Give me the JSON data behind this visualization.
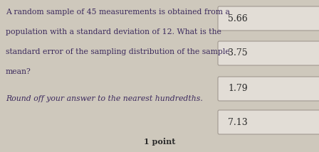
{
  "question_lines": [
    "A random sample of 45 measurements is obtained from a",
    "population with a standard deviation of 12. What is the",
    "standard error of the sampling distribution of the sample",
    "mean?"
  ],
  "sub_note": "Round off your answer to the nearest hundredths.",
  "choices": [
    "5.66",
    "3.75",
    "1.79",
    "7.13"
  ],
  "footer": "1 point",
  "bg_color": "#cec8bc",
  "box_color": "#e2ddd6",
  "box_border_color": "#a09890",
  "question_color": "#3d2b5e",
  "sub_note_color": "#3d2b5e",
  "choice_color": "#2a2a2a",
  "footer_color": "#2a2a2a",
  "question_font_size": 7.8,
  "sub_note_font_size": 7.8,
  "choice_font_size": 9.0,
  "footer_font_size": 8.0
}
